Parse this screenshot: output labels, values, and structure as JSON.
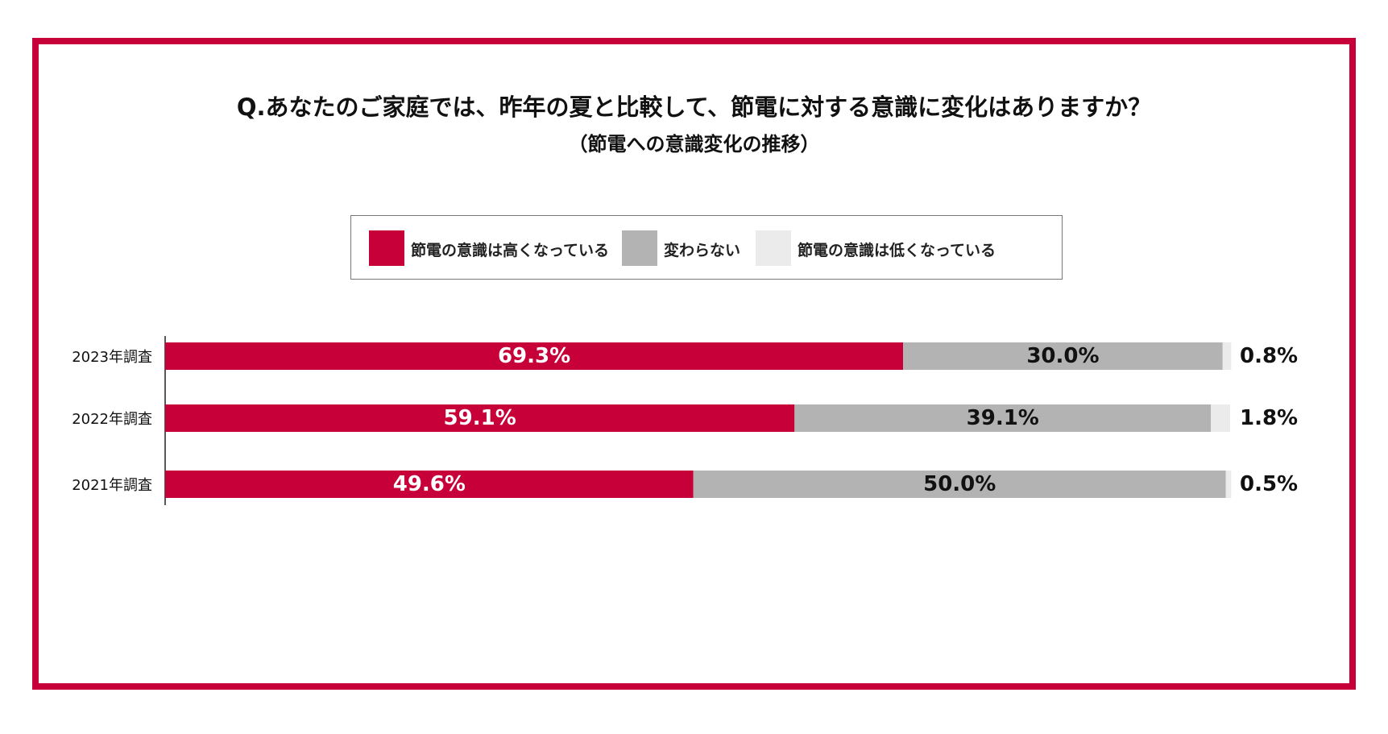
{
  "chart_data": {
    "type": "bar",
    "orientation": "horizontal",
    "stacked": true,
    "title": "Q.あなたのご家庭では、昨年の夏と比較して、節電に対する意識に変化はありますか？",
    "subtitle": "（節電への意識変化の推移）",
    "categories": [
      "2023年調査",
      "2022年調査",
      "2021年調査"
    ],
    "series": [
      {
        "name": "節電の意識は高くなっている",
        "values": [
          69.3,
          59.1,
          49.6
        ],
        "labels": [
          "69.3%",
          "59.1%",
          "49.6%"
        ],
        "color": "#c8003a",
        "label_color": "#ffffff"
      },
      {
        "name": "変わらない",
        "values": [
          30.0,
          39.1,
          50.0
        ],
        "labels": [
          "30.0%",
          "39.1%",
          "50.0%"
        ],
        "color": "#b3b3b3",
        "label_color": "#111111"
      },
      {
        "name": "節電の意識は低くなっている",
        "values": [
          0.8,
          1.8,
          0.5
        ],
        "labels": [
          "0.8%",
          "1.8%",
          "0.5%"
        ],
        "color": "#ebebeb",
        "label_color": "#111111"
      }
    ],
    "xlim": [
      0,
      100
    ],
    "legend_position": "top-center",
    "grid": false
  }
}
